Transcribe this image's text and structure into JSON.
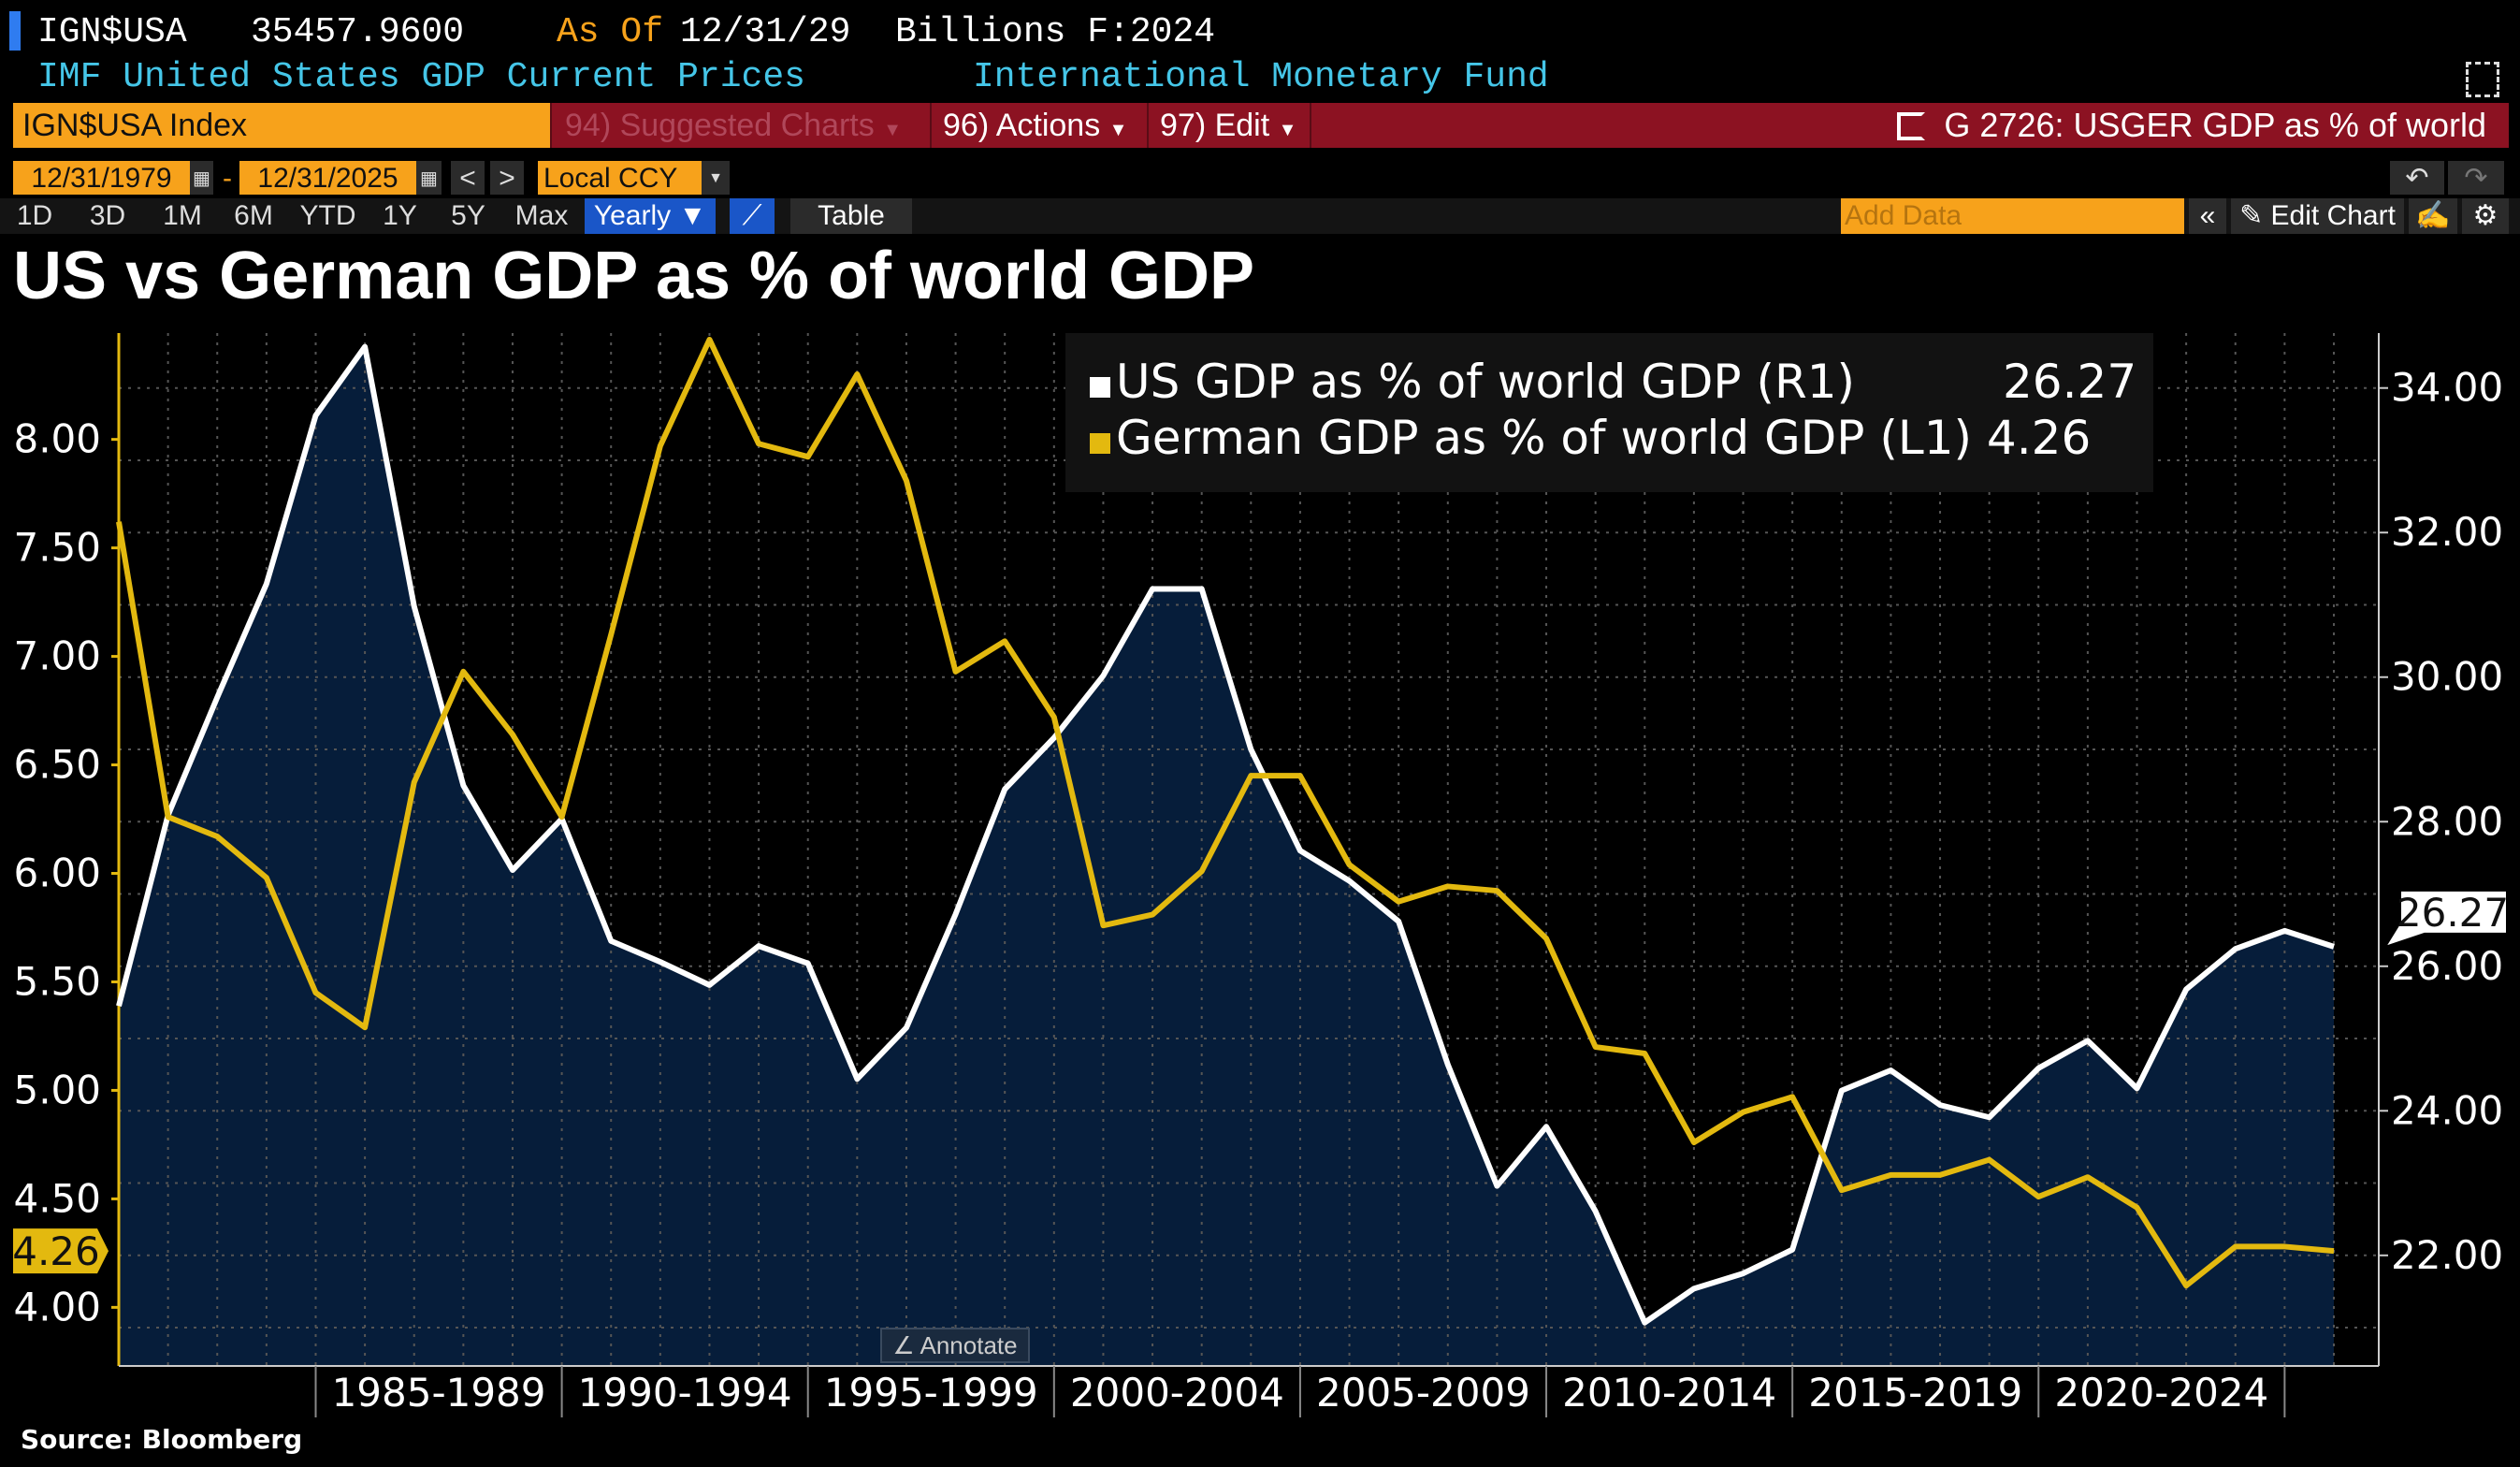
{
  "header": {
    "ticker": "IGN$USA",
    "value": "35457.9600",
    "as_of_label": "As Of",
    "as_of_date": "12/31/29",
    "units": "Billions F:2024",
    "description": "IMF United States GDP Current Prices",
    "source_org": "International Monetary Fund"
  },
  "toolbar": {
    "security": "IGN$USA Index",
    "suggested": "94) Suggested Charts",
    "actions": "96) Actions",
    "edit": "97) Edit",
    "chart_id": "G 2726: USGER GDP as % of world"
  },
  "dates": {
    "start": "12/31/1979",
    "sep": "-",
    "end": "12/31/2025",
    "prev": "<",
    "next": ">",
    "currency": "Local CCY"
  },
  "timeframes": [
    "1D",
    "3D",
    "1M",
    "6M",
    "YTD",
    "1Y",
    "5Y",
    "Max"
  ],
  "period": "Yearly ▼",
  "table_label": "Table",
  "add_data_placeholder": "Add Data",
  "collapse": "«",
  "edit_chart": "Edit Chart",
  "annotate": "Annotate",
  "source": "Source:  Bloomberg",
  "colors": {
    "us": "#ffffff",
    "germany": "#e3b90f",
    "area": "#061d3a",
    "red": "#8c1222",
    "orange": "#f7a21b"
  },
  "chart_data": {
    "type": "line",
    "title": "US vs German GDP as % of world GDP",
    "x": [
      1980,
      1981,
      1982,
      1983,
      1984,
      1985,
      1986,
      1987,
      1988,
      1989,
      1990,
      1991,
      1992,
      1993,
      1994,
      1995,
      1996,
      1997,
      1998,
      1999,
      2000,
      2001,
      2002,
      2003,
      2004,
      2005,
      2006,
      2007,
      2008,
      2009,
      2010,
      2011,
      2012,
      2013,
      2014,
      2015,
      2016,
      2017,
      2018,
      2019,
      2020,
      2021,
      2022,
      2023,
      2024,
      2025
    ],
    "series": [
      {
        "name": "US GDP as % of world GDP (R1)",
        "axis": "right",
        "last": "26.27",
        "style": "area",
        "values": [
          25.45,
          28.09,
          29.72,
          31.29,
          33.62,
          34.57,
          30.98,
          28.5,
          27.33,
          28.04,
          26.35,
          26.06,
          25.74,
          26.28,
          26.04,
          24.44,
          25.15,
          26.72,
          28.45,
          29.16,
          30.02,
          31.22,
          31.22,
          29.0,
          27.6,
          27.18,
          26.62,
          24.64,
          22.96,
          23.78,
          22.61,
          21.07,
          21.54,
          21.75,
          22.08,
          24.28,
          24.56,
          24.08,
          23.91,
          24.59,
          24.97,
          24.31,
          25.68,
          26.24,
          26.49,
          26.27
        ]
      },
      {
        "name": "German GDP as % of world GDP (L1)",
        "axis": "left",
        "last": "4.26",
        "style": "line",
        "values": [
          7.62,
          6.26,
          6.17,
          5.98,
          5.45,
          5.29,
          6.42,
          6.93,
          6.64,
          6.26,
          7.1,
          7.97,
          8.46,
          7.98,
          7.92,
          8.3,
          7.81,
          6.93,
          7.07,
          6.72,
          5.76,
          5.81,
          6.01,
          6.45,
          6.45,
          6.04,
          5.87,
          5.94,
          5.92,
          5.7,
          5.2,
          5.17,
          4.76,
          4.9,
          4.97,
          4.54,
          4.61,
          4.61,
          4.68,
          4.51,
          4.6,
          4.46,
          4.1,
          4.28,
          4.28,
          4.26
        ]
      }
    ],
    "left_axis": {
      "ylim": [
        3.73,
        8.49
      ],
      "ticks": [
        "4.00",
        "4.50",
        "5.00",
        "5.50",
        "6.00",
        "6.50",
        "7.00",
        "7.50",
        "8.00"
      ]
    },
    "right_axis": {
      "ylim": [
        20.47,
        34.76
      ],
      "ticks": [
        "22.00",
        "24.00",
        "26.00",
        "28.00",
        "30.00",
        "32.00",
        "34.00"
      ]
    },
    "x_period_labels": [
      {
        "label": "1985-1989",
        "from": 1984,
        "to": 1989
      },
      {
        "label": "1990-1994",
        "from": 1989,
        "to": 1994
      },
      {
        "label": "1995-1999",
        "from": 1994,
        "to": 1999
      },
      {
        "label": "2000-2004",
        "from": 1999,
        "to": 2004
      },
      {
        "label": "2005-2009",
        "from": 2004,
        "to": 2009
      },
      {
        "label": "2010-2014",
        "from": 2009,
        "to": 2014
      },
      {
        "label": "2015-2019",
        "from": 2014,
        "to": 2019
      },
      {
        "label": "2020-2024",
        "from": 2019,
        "to": 2024
      }
    ],
    "grid": true,
    "legend": "top-right"
  }
}
